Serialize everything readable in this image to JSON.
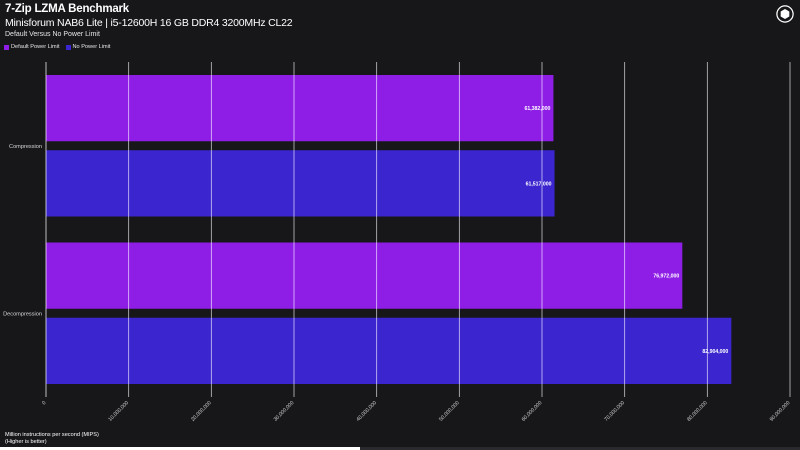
{
  "header": {
    "title": "7-Zip LZMA Benchmark",
    "subtitle": "Minisforum NAB6 Lite | i5-12600H 16 GB DDR4 3200MHz CL22",
    "subsubtitle": "Default Versus No Power Limit"
  },
  "logo_icon": "hexagon-logo-icon",
  "progress": 0.45,
  "chart_data": {
    "type": "bar",
    "orientation": "horizontal",
    "title": "7-Zip LZMA Benchmark",
    "subtitle": "Minisforum NAB6 Lite | i5-12600H 16 GB DDR4 3200MHz CL22",
    "categories": [
      "Compression",
      "Decompression"
    ],
    "series": [
      {
        "name": "Default Power Limit",
        "color": "#8e1ee6",
        "values": [
          61382000,
          76972000
        ],
        "labels": [
          "61,382,000",
          "76,972,000"
        ]
      },
      {
        "name": "No Power Limit",
        "color": "#3b25cf",
        "values": [
          61517000,
          82904000
        ],
        "labels": [
          "61,517,000",
          "82,904,000"
        ]
      }
    ],
    "xlabel": "Million instructions per second (MIPS)",
    "xlabel_note": "(Higher is better)",
    "xlim": [
      0,
      90000000
    ],
    "xticks": [
      0,
      10000000,
      20000000,
      30000000,
      40000000,
      50000000,
      60000000,
      70000000,
      80000000,
      90000000
    ],
    "xtick_labels": [
      "0",
      "10,000,000",
      "20,000,000",
      "30,000,000",
      "40,000,000",
      "50,000,000",
      "60,000,000",
      "70,000,000",
      "80,000,000",
      "90,000,000"
    ],
    "grid": true,
    "legend": "top-left"
  }
}
